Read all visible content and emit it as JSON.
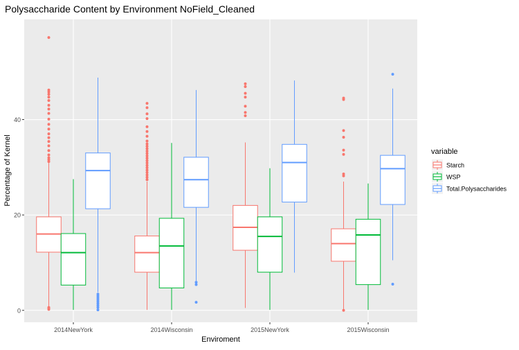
{
  "chart_data": {
    "type": "boxplot",
    "title": "Polysaccharide Content by Environment NoField_Cleaned",
    "xlabel": "Enviroment",
    "ylabel": "Percentage of Kernel",
    "ylim": [
      -2.5,
      61
    ],
    "yticks": [
      0,
      20,
      40
    ],
    "grid": true,
    "legend": {
      "title": "variable",
      "position": "right"
    },
    "categories": [
      "2014NewYork",
      "2014Wisconsin",
      "2015NewYork",
      "2015Wisconsin"
    ],
    "series": [
      {
        "name": "Starch",
        "color": "#F8766D",
        "boxes": [
          {
            "min": 0.8,
            "q1": 12.2,
            "median": 16.0,
            "q3": 19.6,
            "max": 30.9,
            "outliers": [
              0.2,
              0.4,
              0.6,
              31.2,
              31.6,
              32.0,
              32.6,
              33.5,
              34.5,
              35.4,
              36.2,
              37.0,
              38.0,
              39.0,
              40.1,
              41.3,
              42.2,
              43.0,
              44.0,
              44.7,
              45.3,
              45.8,
              46.2,
              57.2
            ]
          },
          {
            "min": 0.1,
            "q1": 8.0,
            "median": 12.1,
            "q3": 15.6,
            "max": 27.0,
            "outliers": [
              27.4,
              27.9,
              28.4,
              28.9,
              29.4,
              29.9,
              30.4,
              30.9,
              31.4,
              31.9,
              32.4,
              32.9,
              33.4,
              33.9,
              34.4,
              34.9,
              35.5,
              36.5,
              37.5,
              38.5,
              40.2,
              41.2,
              42.5,
              43.4
            ]
          },
          {
            "min": 0.5,
            "q1": 12.6,
            "median": 17.4,
            "q3": 22.0,
            "max": 35.2,
            "outliers": [
              40.8,
              41.5,
              42.8,
              44.7,
              45.5,
              46.9,
              47.5
            ]
          },
          {
            "min": 0.1,
            "q1": 10.3,
            "median": 14.0,
            "q3": 17.1,
            "max": 27.0,
            "outliers": [
              0.0,
              28.2,
              28.6,
              32.7,
              33.6,
              36.3,
              37.7,
              44.2,
              44.5
            ]
          }
        ]
      },
      {
        "name": "WSP",
        "color": "#00BA38",
        "boxes": [
          {
            "min": 0.1,
            "q1": 5.3,
            "median": 12.1,
            "q3": 16.1,
            "max": 27.5,
            "outliers": []
          },
          {
            "min": 0.1,
            "q1": 4.7,
            "median": 13.5,
            "q3": 19.3,
            "max": 35.1,
            "outliers": []
          },
          {
            "min": 0.1,
            "q1": 8.0,
            "median": 15.5,
            "q3": 19.6,
            "max": 29.8,
            "outliers": []
          },
          {
            "min": 0.1,
            "q1": 5.4,
            "median": 15.8,
            "q3": 19.1,
            "max": 26.6,
            "outliers": []
          }
        ]
      },
      {
        "name": "Total.Polysaccharides",
        "color": "#619CFF",
        "boxes": [
          {
            "min": 3.8,
            "q1": 21.3,
            "median": 29.3,
            "q3": 33.0,
            "max": 48.8,
            "outliers": [
              0.1,
              0.6,
              1.0,
              1.4,
              1.8,
              2.2,
              2.6,
              3.0,
              3.4
            ]
          },
          {
            "min": 6.2,
            "q1": 21.6,
            "median": 27.4,
            "q3": 32.1,
            "max": 46.2,
            "outliers": [
              1.7,
              5.4,
              5.9
            ]
          },
          {
            "min": 7.9,
            "q1": 22.7,
            "median": 31.0,
            "q3": 34.8,
            "max": 48.2,
            "outliers": []
          },
          {
            "min": 10.5,
            "q1": 22.2,
            "median": 29.7,
            "q3": 32.5,
            "max": 46.5,
            "outliers": [
              5.5,
              49.5
            ]
          }
        ]
      }
    ]
  }
}
